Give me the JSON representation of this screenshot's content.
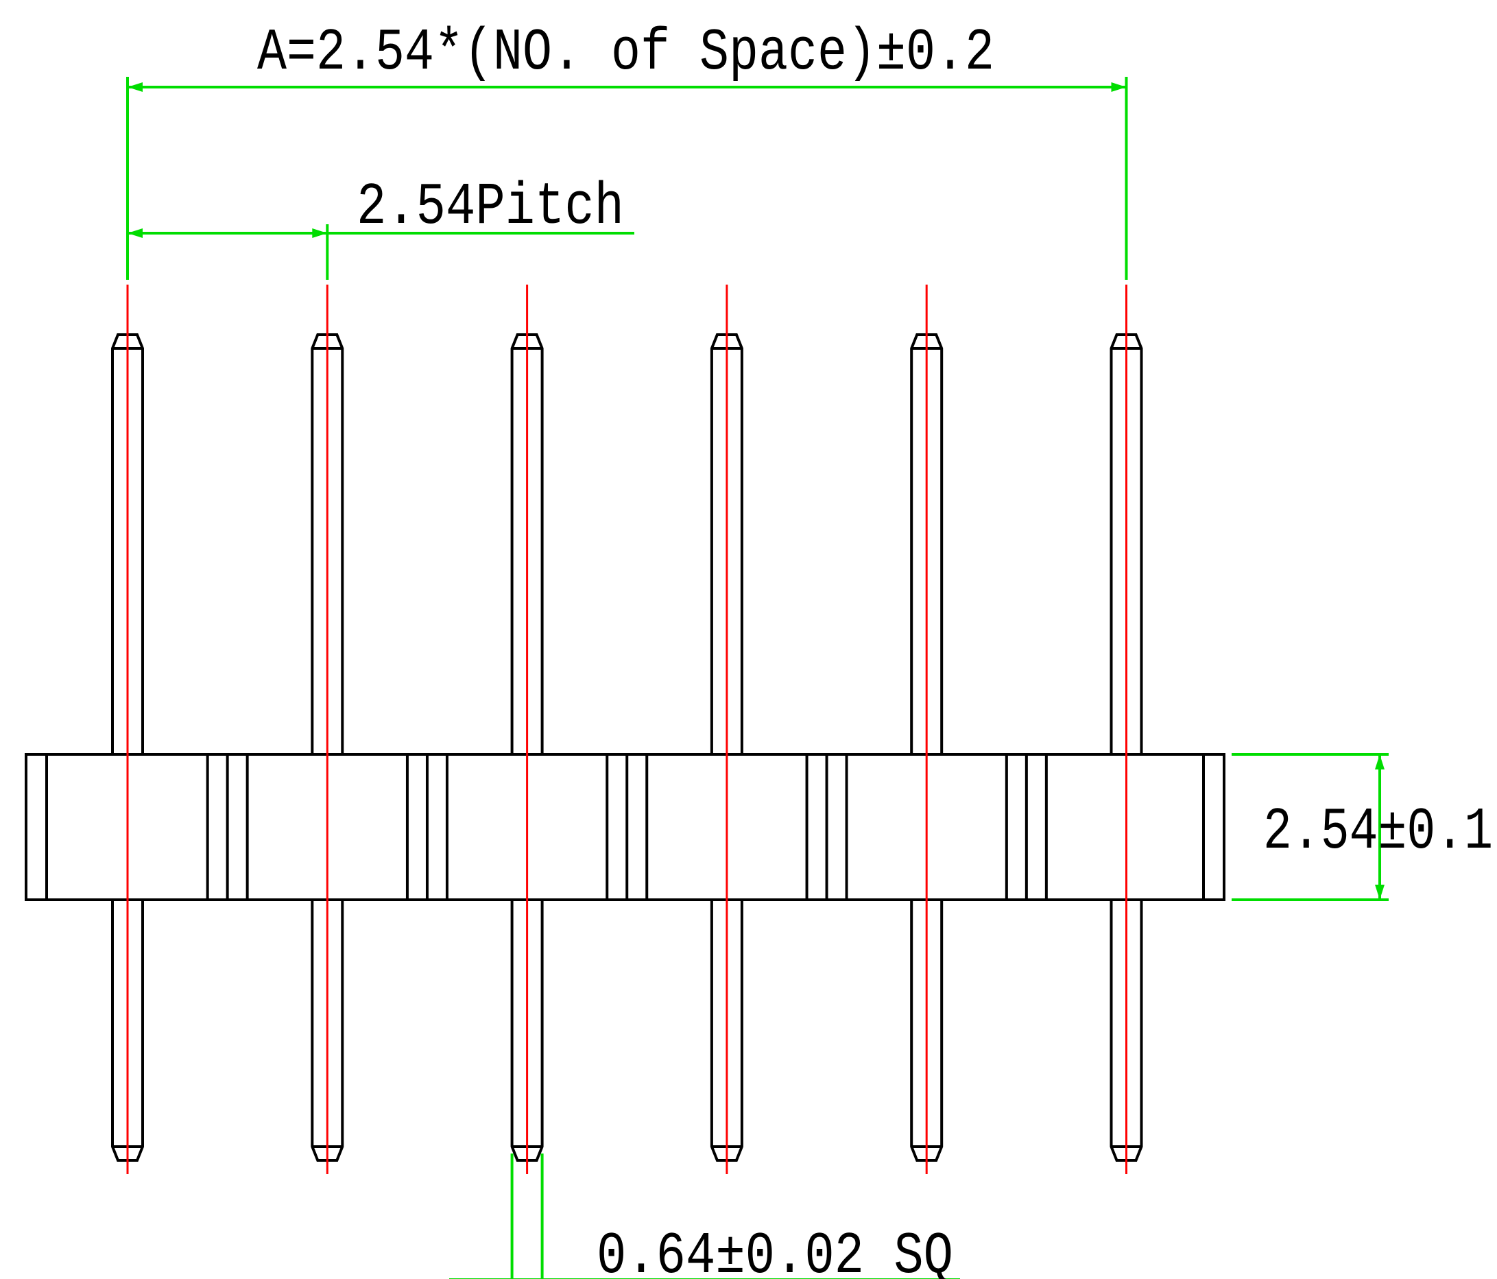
{
  "colors": {
    "background": "#ffffff",
    "outline": "#000000",
    "centerline": "#ff0000",
    "dimension": "#00dd00"
  },
  "labels": {
    "overall_length": "A=2.54*(NO. of Space)±0.2",
    "pitch": "2.54Pitch",
    "body_height": "2.54±0.1",
    "pin_size": "0.64±0.02 SQ"
  },
  "drawing": {
    "pin_count": 6
  }
}
